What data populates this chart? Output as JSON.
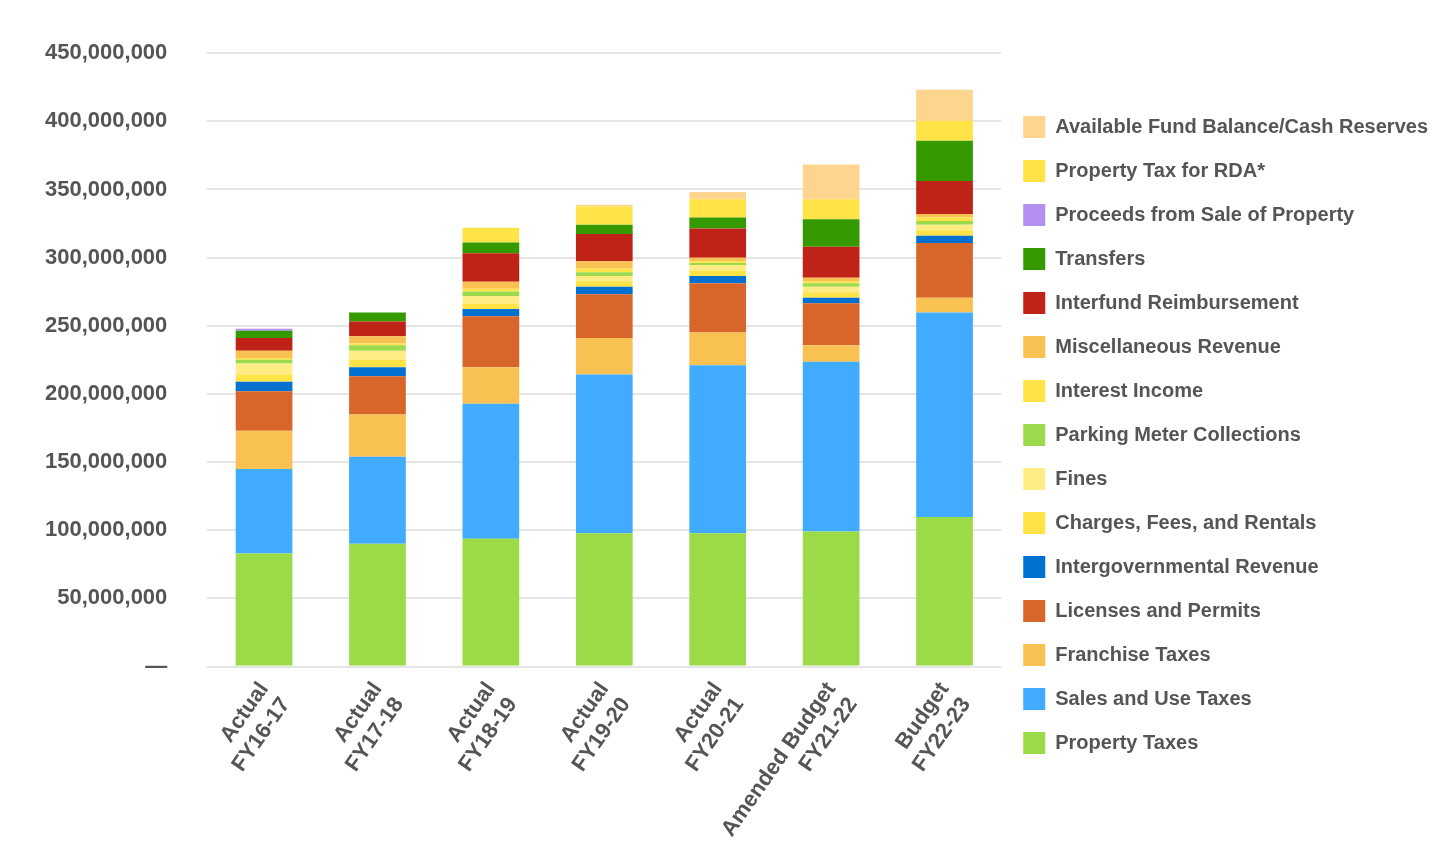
{
  "chart_data": {
    "type": "bar",
    "stacked": true,
    "categories": [
      "Actual FY16-17",
      "Actual FY17-18",
      "Actual FY18-19",
      "Actual FY19-20",
      "Actual FY20-21",
      "Amended Budget FY21-22",
      "Budget FY22-23"
    ],
    "ylim": [
      0,
      450000000
    ],
    "yticks": [
      {
        "value": 0,
        "label": "—"
      },
      {
        "value": 50000000,
        "label": "50,000,000"
      },
      {
        "value": 100000000,
        "label": "100,000,000"
      },
      {
        "value": 150000000,
        "label": "150,000,000"
      },
      {
        "value": 200000000,
        "label": "200,000,000"
      },
      {
        "value": 250000000,
        "label": "250,000,000"
      },
      {
        "value": 300000000,
        "label": "300,000,000"
      },
      {
        "value": 350000000,
        "label": "350,000,000"
      },
      {
        "value": 400000000,
        "label": "400,000,000"
      },
      {
        "value": 450000000,
        "label": "450,000,000"
      }
    ],
    "grid": "y",
    "legend": "right",
    "series": [
      {
        "name": "Property Taxes",
        "color": "#9cdb48",
        "values": [
          83000000,
          90000000,
          93800000,
          97800000,
          97800000,
          99100000,
          109800000
        ]
      },
      {
        "name": "Sales and Use Taxes",
        "color": "#41acff",
        "values": [
          62000000,
          64000000,
          99000000,
          116500000,
          123200000,
          124600000,
          150000000
        ]
      },
      {
        "name": "Franchise Taxes",
        "color": "#f9c152",
        "values": [
          28000000,
          31000000,
          26700000,
          26800000,
          24100000,
          12000000,
          10700000
        ]
      },
      {
        "name": "Licenses and Permits",
        "color": "#d8652a",
        "values": [
          29000000,
          28000000,
          37500000,
          32100000,
          36200000,
          30800000,
          40200000
        ]
      },
      {
        "name": "Intergovernmental Revenue",
        "color": "#0070d1",
        "values": [
          7000000,
          6600000,
          5400000,
          5400000,
          5300000,
          4000000,
          5400000
        ]
      },
      {
        "name": "Charges, Fees, and Rentals",
        "color": "#ffe347",
        "values": [
          5300000,
          5400000,
          4000000,
          4000000,
          4000000,
          4100000,
          4000000
        ]
      },
      {
        "name": "Fines",
        "color": "#ffec85",
        "values": [
          8000000,
          6700000,
          5400000,
          4000000,
          4000000,
          4000000,
          4000000
        ]
      },
      {
        "name": "Parking Meter Collections",
        "color": "#9dd94c",
        "values": [
          2700000,
          4000000,
          3300000,
          2700000,
          1400000,
          2700000,
          2700000
        ]
      },
      {
        "name": "Interest Income",
        "color": "#ffe347",
        "values": [
          1300000,
          1300000,
          2000000,
          2700000,
          1300000,
          1300000,
          2700000
        ]
      },
      {
        "name": "Miscellaneous Revenue",
        "color": "#f9c152",
        "values": [
          5400000,
          5400000,
          5300000,
          5300000,
          2700000,
          2700000,
          2600000
        ]
      },
      {
        "name": "Interfund Reimbursement",
        "color": "#bf2318",
        "values": [
          9400000,
          10700000,
          20800000,
          20100000,
          21400000,
          22700000,
          24200000
        ]
      },
      {
        "name": "Transfers",
        "color": "#349a00",
        "values": [
          5300000,
          6700000,
          8000000,
          6700000,
          8100000,
          20100000,
          29400000
        ]
      },
      {
        "name": "Proceeds from Sale of Property",
        "color": "#b38ff0",
        "values": [
          1400000,
          null,
          null,
          null,
          null,
          null,
          null
        ]
      },
      {
        "name": "Property Tax for RDA*",
        "color": "#ffe347",
        "values": [
          null,
          null,
          10700000,
          13400000,
          13400000,
          14800000,
          14700000
        ]
      },
      {
        "name": "Available Fund Balance/Cash Reserves",
        "color": "#fdd58e",
        "values": [
          null,
          null,
          null,
          1300000,
          5300000,
          25400000,
          22800000
        ]
      }
    ]
  }
}
